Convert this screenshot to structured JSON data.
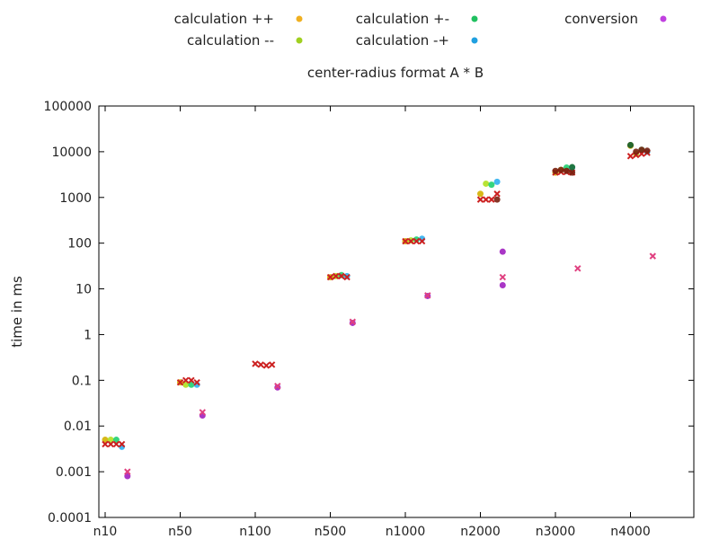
{
  "chart_data": {
    "type": "scatter",
    "title": "center-radius format A * B",
    "xlabel": "",
    "ylabel": "time in ms",
    "yscale": "log",
    "ylim": [
      0.0001,
      100000
    ],
    "y_ticks": [
      "0.0001",
      "0.001",
      "0.01",
      "0.1",
      "1",
      "10",
      "100",
      "1000",
      "10000",
      "100000"
    ],
    "categories": [
      "n10",
      "n50",
      "n100",
      "n500",
      "n1000",
      "n2000",
      "n3000",
      "n4000"
    ],
    "grid": false,
    "legend_position": "top",
    "legend": [
      {
        "name": "calculation ++",
        "color": "#f0b020",
        "marker": "dot"
      },
      {
        "name": "calculation +-",
        "color": "#20c060",
        "marker": "dot"
      },
      {
        "name": "conversion",
        "color": "#c040e0",
        "marker": "dot"
      },
      {
        "name": "calculation --",
        "color": "#a0d020",
        "marker": "dot"
      },
      {
        "name": "calculation -+",
        "color": "#20a0e0",
        "marker": "dot"
      }
    ],
    "series": [
      {
        "color": "#d4b000",
        "marker": "dot",
        "points": [
          [
            "n10",
            0,
            0.005
          ],
          [
            "n50",
            0,
            0.09
          ],
          [
            "n500",
            0,
            18
          ],
          [
            "n1000",
            0,
            110
          ],
          [
            "n2000",
            0,
            1200
          ],
          [
            "n3000",
            0,
            3500
          ],
          [
            "n4000",
            0,
            13500
          ]
        ]
      },
      {
        "color": "#b0e020",
        "marker": "dot",
        "points": [
          [
            "n10",
            1,
            0.005
          ],
          [
            "n50",
            1,
            0.08
          ],
          [
            "n500",
            1,
            19
          ],
          [
            "n1000",
            1,
            115
          ],
          [
            "n2000",
            1,
            2000
          ],
          [
            "n3000",
            1,
            4000
          ],
          [
            "n4000",
            1,
            9000
          ]
        ]
      },
      {
        "color": "#20d070",
        "marker": "dot",
        "points": [
          [
            "n10",
            2,
            0.005
          ],
          [
            "n50",
            2,
            0.08
          ],
          [
            "n500",
            2,
            20
          ],
          [
            "n1000",
            2,
            120
          ],
          [
            "n2000",
            2,
            1900
          ],
          [
            "n3000",
            2,
            4500
          ],
          [
            "n4000",
            2,
            11000
          ]
        ]
      },
      {
        "color": "#30b0f0",
        "marker": "dot",
        "points": [
          [
            "n10",
            3,
            0.0035
          ],
          [
            "n50",
            3,
            0.08
          ],
          [
            "n500",
            3,
            19
          ],
          [
            "n1000",
            3,
            125
          ],
          [
            "n2000",
            3,
            2200
          ],
          [
            "n3000",
            3,
            4500
          ],
          [
            "n4000",
            3,
            10000
          ]
        ]
      },
      {
        "color": "#cc2020",
        "marker": "cross",
        "points": [
          [
            "n10",
            0,
            0.004
          ],
          [
            "n10",
            1,
            0.004
          ],
          [
            "n10",
            2,
            0.004
          ],
          [
            "n10",
            3,
            0.004
          ],
          [
            "n50",
            0,
            0.09
          ],
          [
            "n50",
            1,
            0.1
          ],
          [
            "n50",
            2,
            0.1
          ],
          [
            "n50",
            3,
            0.09
          ],
          [
            "n100",
            0,
            0.23
          ],
          [
            "n100",
            1,
            0.22
          ],
          [
            "n100",
            2,
            0.21
          ],
          [
            "n100",
            3,
            0.22
          ],
          [
            "n500",
            0,
            18
          ],
          [
            "n500",
            1,
            19
          ],
          [
            "n500",
            2,
            19
          ],
          [
            "n500",
            3,
            18
          ],
          [
            "n1000",
            0,
            110
          ],
          [
            "n1000",
            1,
            110
          ],
          [
            "n1000",
            2,
            110
          ],
          [
            "n1000",
            3,
            110
          ],
          [
            "n2000",
            0,
            900
          ],
          [
            "n2000",
            1,
            900
          ],
          [
            "n2000",
            2,
            900
          ],
          [
            "n2000",
            3,
            1200
          ],
          [
            "n3000",
            0,
            3500
          ],
          [
            "n3000",
            1,
            3600
          ],
          [
            "n3000",
            2,
            3600
          ],
          [
            "n3000",
            3,
            3500
          ],
          [
            "n4000",
            0,
            8000
          ],
          [
            "n4000",
            1,
            8500
          ],
          [
            "n4000",
            2,
            9000
          ],
          [
            "n4000",
            3,
            9500
          ]
        ]
      },
      {
        "color": "#7a2010",
        "marker": "dot",
        "points": [
          [
            "n2000",
            3,
            900
          ],
          [
            "n3000",
            0,
            3800
          ],
          [
            "n3000",
            1,
            4000
          ],
          [
            "n3000",
            2,
            3800
          ],
          [
            "n3000",
            3,
            3500
          ],
          [
            "n4000",
            0,
            14000
          ],
          [
            "n4000",
            1,
            10000
          ],
          [
            "n4000",
            2,
            11000
          ],
          [
            "n4000",
            3,
            10500
          ]
        ]
      },
      {
        "color": "#a020c0",
        "marker": "dot",
        "points": [
          [
            "n10",
            4,
            0.0008
          ],
          [
            "n50",
            4,
            0.017
          ],
          [
            "n100",
            4,
            0.07
          ],
          [
            "n500",
            4,
            1.8
          ],
          [
            "n1000",
            4,
            7
          ],
          [
            "n2000",
            4,
            12
          ],
          [
            "n2000",
            4,
            65
          ]
        ]
      },
      {
        "color": "#e04080",
        "marker": "cross",
        "points": [
          [
            "n10",
            4,
            0.001
          ],
          [
            "n50",
            4,
            0.02
          ],
          [
            "n100",
            4,
            0.075
          ],
          [
            "n500",
            4,
            1.9
          ],
          [
            "n1000",
            4,
            7.2
          ],
          [
            "n2000",
            4,
            18
          ],
          [
            "n3000",
            4,
            28
          ],
          [
            "n4000",
            4,
            52
          ]
        ]
      },
      {
        "color": "#1c6f30",
        "marker": "dot",
        "points": [
          [
            "n4000",
            0,
            14000
          ],
          [
            "n3000",
            3,
            4600
          ]
        ]
      }
    ]
  }
}
